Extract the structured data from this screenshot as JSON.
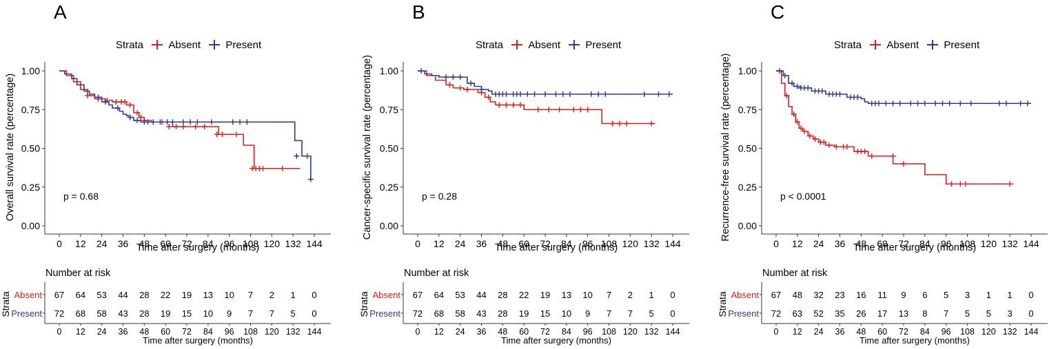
{
  "colors": {
    "absent": "#e41a1c",
    "present": "#2b3990",
    "axis": "#333333"
  },
  "chart_data": [
    {
      "type": "line",
      "panel_letter": "A",
      "legend": {
        "title": "Strata",
        "items": [
          "Absent",
          "Present"
        ]
      },
      "ylabel": "Overall survival rate (percentage)",
      "xlabel": "Time after surgery (months)",
      "pvalue": "p = 0.68",
      "xlim": [
        0,
        144
      ],
      "ylim": [
        0,
        1
      ],
      "xticks": [
        0,
        12,
        24,
        36,
        48,
        60,
        72,
        84,
        96,
        108,
        120,
        132,
        144
      ],
      "yticks": [
        "0.00",
        "0.25",
        "0.50",
        "0.75",
        "1.00"
      ],
      "series": [
        {
          "name": "Absent",
          "x": [
            0,
            4,
            8,
            12,
            16,
            20,
            26,
            30,
            38,
            42,
            45,
            48,
            52,
            64,
            90,
            104,
            110,
            136
          ],
          "y": [
            1.0,
            0.97,
            0.93,
            0.88,
            0.84,
            0.82,
            0.81,
            0.8,
            0.78,
            0.73,
            0.7,
            0.68,
            0.67,
            0.64,
            0.59,
            0.52,
            0.37,
            0.37
          ],
          "censor_x": [
            16,
            22,
            27,
            32,
            35,
            37,
            40,
            44,
            46,
            48,
            58,
            62,
            66,
            70,
            77,
            82,
            89,
            92,
            100,
            109,
            111,
            113,
            115,
            126
          ],
          "censor_y": [
            0.84,
            0.82,
            0.81,
            0.8,
            0.8,
            0.8,
            0.78,
            0.73,
            0.7,
            0.68,
            0.67,
            0.64,
            0.64,
            0.64,
            0.64,
            0.64,
            0.59,
            0.59,
            0.59,
            0.37,
            0.37,
            0.37,
            0.37,
            0.37
          ]
        },
        {
          "name": "Present",
          "x": [
            0,
            3,
            7,
            10,
            14,
            17,
            20,
            24,
            28,
            30,
            34,
            36,
            38,
            40,
            42,
            46,
            50,
            128,
            133,
            137,
            140,
            142
          ],
          "y": [
            1.0,
            0.98,
            0.95,
            0.91,
            0.87,
            0.85,
            0.83,
            0.8,
            0.78,
            0.76,
            0.74,
            0.72,
            0.71,
            0.7,
            0.68,
            0.67,
            0.67,
            0.67,
            0.55,
            0.45,
            0.45,
            0.3
          ],
          "censor_x": [
            22,
            26,
            33,
            40,
            44,
            48,
            50,
            53,
            57,
            61,
            64,
            70,
            74,
            78,
            86,
            98,
            102,
            106,
            134,
            140,
            142
          ],
          "censor_y": [
            0.83,
            0.8,
            0.76,
            0.7,
            0.68,
            0.67,
            0.67,
            0.67,
            0.67,
            0.67,
            0.67,
            0.67,
            0.67,
            0.67,
            0.67,
            0.67,
            0.67,
            0.67,
            0.45,
            0.45,
            0.3
          ]
        }
      ],
      "risk_table": {
        "title": "Number at risk",
        "strata_label": "Strata",
        "rows": [
          {
            "name": "Absent",
            "values": [
              "67",
              "64",
              "53",
              "44",
              "28",
              "22",
              "19",
              "13",
              "10",
              "7",
              "2",
              "1",
              "0"
            ]
          },
          {
            "name": "Present",
            "values": [
              "72",
              "68",
              "58",
              "43",
              "28",
              "19",
              "15",
              "10",
              "9",
              "7",
              "7",
              "5",
              "0"
            ]
          }
        ],
        "xlabel": "Time after surgery (months)"
      }
    },
    {
      "type": "line",
      "panel_letter": "B",
      "legend": {
        "title": "Strata",
        "items": [
          "Absent",
          "Present"
        ]
      },
      "ylabel": "Cancer-specific survival rate (percentage)",
      "xlabel": "Time after surgery (months)",
      "pvalue": "p = 0.28",
      "xlim": [
        0,
        144
      ],
      "ylim": [
        0,
        1
      ],
      "xticks": [
        0,
        12,
        24,
        36,
        48,
        60,
        72,
        84,
        96,
        108,
        120,
        132,
        144
      ],
      "yticks": [
        "0.00",
        "0.25",
        "0.50",
        "0.75",
        "1.00"
      ],
      "series": [
        {
          "name": "Absent",
          "x": [
            0,
            5,
            10,
            16,
            20,
            26,
            34,
            38,
            41,
            44,
            60,
            104,
            134
          ],
          "y": [
            1.0,
            0.97,
            0.94,
            0.91,
            0.89,
            0.88,
            0.86,
            0.83,
            0.8,
            0.78,
            0.75,
            0.66,
            0.66
          ],
          "censor_x": [
            18,
            24,
            28,
            36,
            40,
            46,
            50,
            54,
            58,
            68,
            74,
            80,
            88,
            92,
            96,
            110,
            114,
            118,
            132
          ],
          "censor_y": [
            0.91,
            0.89,
            0.88,
            0.86,
            0.83,
            0.78,
            0.78,
            0.78,
            0.78,
            0.75,
            0.75,
            0.75,
            0.75,
            0.75,
            0.75,
            0.66,
            0.66,
            0.66,
            0.66
          ]
        },
        {
          "name": "Present",
          "x": [
            0,
            4,
            8,
            12,
            28,
            32,
            36,
            40,
            42,
            144
          ],
          "y": [
            1.0,
            0.98,
            0.97,
            0.96,
            0.92,
            0.9,
            0.88,
            0.87,
            0.85,
            0.85
          ],
          "censor_x": [
            2,
            16,
            20,
            24,
            30,
            36,
            44,
            46,
            48,
            50,
            54,
            56,
            58,
            62,
            66,
            72,
            78,
            82,
            86,
            98,
            102,
            106,
            128,
            136,
            142
          ],
          "censor_y": [
            1.0,
            0.96,
            0.96,
            0.96,
            0.92,
            0.88,
            0.85,
            0.85,
            0.85,
            0.85,
            0.85,
            0.85,
            0.85,
            0.85,
            0.85,
            0.85,
            0.85,
            0.85,
            0.85,
            0.85,
            0.85,
            0.85,
            0.85,
            0.85,
            0.85
          ]
        }
      ],
      "risk_table": {
        "title": "Number at risk",
        "strata_label": "Strata",
        "rows": [
          {
            "name": "Absent",
            "values": [
              "67",
              "64",
              "53",
              "44",
              "28",
              "22",
              "19",
              "13",
              "10",
              "7",
              "2",
              "1",
              "0"
            ]
          },
          {
            "name": "Present",
            "values": [
              "72",
              "68",
              "58",
              "43",
              "28",
              "19",
              "15",
              "10",
              "9",
              "7",
              "7",
              "5",
              "0"
            ]
          }
        ],
        "xlabel": "Time after surgery (months)"
      }
    },
    {
      "type": "line",
      "panel_letter": "C",
      "legend": {
        "title": "Strata",
        "items": [
          "Absent",
          "Present"
        ]
      },
      "ylabel": "Recurrence-free survival rate (percentage)",
      "xlabel": "Time after surgery (months)",
      "pvalue": "p < 0.0001",
      "xlim": [
        0,
        144
      ],
      "ylim": [
        0,
        1
      ],
      "xticks": [
        0,
        12,
        24,
        36,
        48,
        60,
        72,
        84,
        96,
        108,
        120,
        132,
        144
      ],
      "yticks": [
        "0.00",
        "0.25",
        "0.50",
        "0.75",
        "1.00"
      ],
      "series": [
        {
          "name": "Absent",
          "x": [
            0,
            3,
            5,
            7,
            9,
            11,
            13,
            15,
            18,
            21,
            24,
            28,
            33,
            44,
            52,
            66,
            84,
            96,
            134
          ],
          "y": [
            1.0,
            0.92,
            0.84,
            0.77,
            0.72,
            0.67,
            0.63,
            0.61,
            0.58,
            0.56,
            0.54,
            0.52,
            0.51,
            0.48,
            0.45,
            0.4,
            0.33,
            0.27,
            0.27
          ],
          "censor_x": [
            6,
            10,
            12,
            14,
            16,
            19,
            22,
            25,
            27,
            30,
            34,
            38,
            40,
            46,
            48,
            50,
            54,
            66,
            72,
            99,
            104,
            107,
            132
          ],
          "censor_y": [
            0.84,
            0.72,
            0.67,
            0.63,
            0.61,
            0.58,
            0.56,
            0.54,
            0.54,
            0.52,
            0.51,
            0.51,
            0.51,
            0.48,
            0.48,
            0.48,
            0.45,
            0.45,
            0.4,
            0.27,
            0.27,
            0.27,
            0.27
          ]
        },
        {
          "name": "Present",
          "x": [
            0,
            4,
            7,
            10,
            14,
            20,
            28,
            40,
            48,
            50,
            52,
            144
          ],
          "y": [
            1.0,
            0.97,
            0.92,
            0.9,
            0.89,
            0.87,
            0.85,
            0.83,
            0.82,
            0.8,
            0.79,
            0.79
          ],
          "censor_x": [
            2,
            5,
            9,
            12,
            14,
            16,
            18,
            22,
            24,
            26,
            30,
            32,
            34,
            36,
            42,
            44,
            46,
            54,
            56,
            58,
            62,
            66,
            70,
            76,
            80,
            84,
            90,
            94,
            98,
            104,
            110,
            126,
            130,
            138,
            142
          ],
          "censor_y": [
            1.0,
            0.97,
            0.92,
            0.9,
            0.89,
            0.89,
            0.89,
            0.87,
            0.87,
            0.87,
            0.85,
            0.85,
            0.85,
            0.85,
            0.83,
            0.83,
            0.83,
            0.79,
            0.79,
            0.79,
            0.79,
            0.79,
            0.79,
            0.79,
            0.79,
            0.79,
            0.79,
            0.79,
            0.79,
            0.79,
            0.79,
            0.79,
            0.79,
            0.79,
            0.79
          ]
        }
      ],
      "risk_table": {
        "title": "Number at risk",
        "strata_label": "Strata",
        "rows": [
          {
            "name": "Absent",
            "values": [
              "67",
              "48",
              "32",
              "23",
              "16",
              "11",
              "9",
              "6",
              "5",
              "3",
              "1",
              "1",
              "0"
            ]
          },
          {
            "name": "Present",
            "values": [
              "72",
              "63",
              "52",
              "35",
              "26",
              "17",
              "13",
              "8",
              "7",
              "5",
              "5",
              "3",
              "0"
            ]
          }
        ],
        "xlabel": "Time after surgery (months)"
      }
    }
  ]
}
